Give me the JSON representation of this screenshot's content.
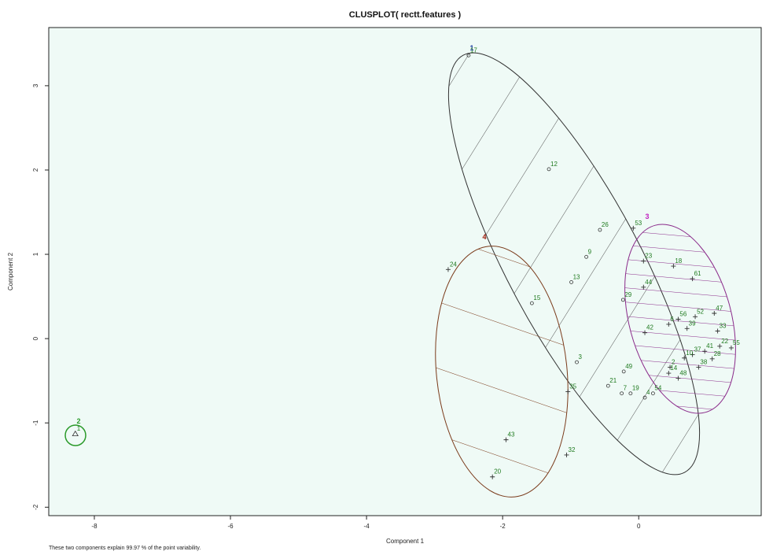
{
  "chart_data": {
    "type": "scatter",
    "title": "CLUSPLOT( rectt.features )",
    "x_label": "Component 1",
    "y_label": "Component 2",
    "footnote": "These two components explain 99.97 % of the point variability.",
    "xlim": [
      -8.67,
      1.8
    ],
    "ylim": [
      -2.1,
      3.69
    ],
    "xticks": [
      -8,
      -6,
      -4,
      -2,
      0
    ],
    "yticks": [
      -2,
      -1,
      0,
      1,
      2,
      3
    ],
    "point_label_color": "#1f7a1f",
    "clusters": [
      {
        "label": "1",
        "color": "#1a3aa0",
        "marker": "circle",
        "labels": [
          "17",
          "12",
          "26",
          "9",
          "13",
          "15",
          "29",
          "3",
          "21",
          "49",
          "19",
          "7",
          "4",
          "54"
        ],
        "x": [
          -2.5,
          -1.32,
          -0.57,
          -0.77,
          -0.99,
          -1.57,
          -0.23,
          -0.91,
          -0.45,
          -0.22,
          -0.12,
          -0.25,
          0.09,
          0.21
        ],
        "y": [
          3.36,
          2.01,
          1.29,
          0.97,
          0.67,
          0.42,
          0.46,
          -0.28,
          -0.56,
          -0.39,
          -0.65,
          -0.65,
          -0.7,
          -0.65
        ]
      },
      {
        "label": "2",
        "color": "#2a9a2a",
        "marker": "triangle",
        "labels": [
          "1"
        ],
        "x": [
          -8.28
        ],
        "y": [
          -1.13
        ]
      },
      {
        "label": "3",
        "color": "#c020c0",
        "marker": "plus",
        "labels": [
          "53",
          "23",
          "18",
          "61",
          "44",
          "56",
          "6",
          "52",
          "39",
          "42",
          "47",
          "33",
          "55",
          "37",
          "2",
          "14",
          "10",
          "48",
          "38",
          "41",
          "22",
          "28"
        ],
        "x": [
          -0.08,
          0.07,
          0.51,
          0.79,
          0.07,
          0.58,
          0.44,
          0.83,
          0.71,
          0.09,
          1.11,
          1.16,
          1.36,
          0.79,
          0.46,
          0.44,
          0.67,
          0.58,
          0.88,
          0.97,
          1.19,
          1.08
        ],
        "y": [
          1.31,
          0.92,
          0.86,
          0.71,
          0.61,
          0.23,
          0.17,
          0.26,
          0.12,
          0.07,
          0.3,
          0.09,
          -0.11,
          -0.19,
          -0.34,
          -0.41,
          -0.23,
          -0.47,
          -0.34,
          -0.15,
          -0.09,
          -0.24
        ]
      },
      {
        "label": "4",
        "color": "#a02010",
        "marker": "plus",
        "labels": [
          "24",
          "35",
          "43",
          "32",
          "20"
        ],
        "x": [
          -2.8,
          -1.04,
          -1.95,
          -1.06,
          -2.15
        ],
        "y": [
          0.82,
          -0.63,
          -1.2,
          -1.38,
          -1.64
        ]
      }
    ]
  }
}
